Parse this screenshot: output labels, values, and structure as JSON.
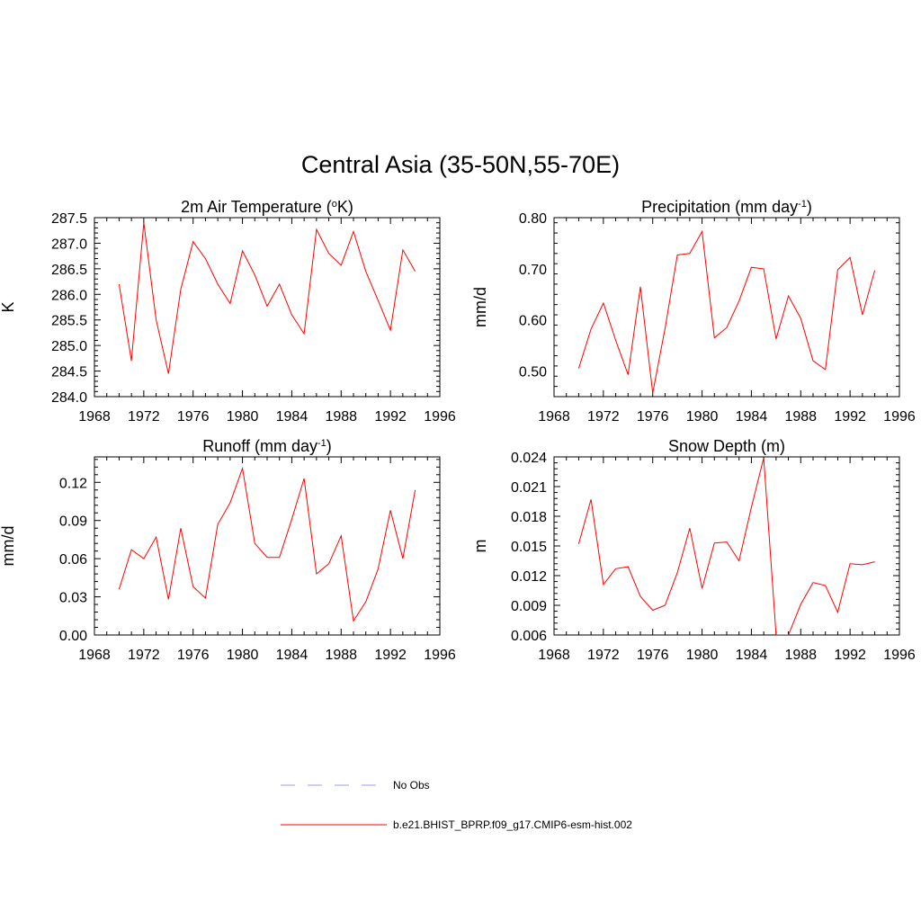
{
  "figure": {
    "title": "Central Asia (35-50N,55-70E)"
  },
  "legend": {
    "entries": [
      {
        "label": "No Obs",
        "color": "#9999ff",
        "style": "dashed"
      },
      {
        "label": "b.e21.BHIST_BPRP.f09_g17.CMIP6-esm-hist.002",
        "color": "#ff0000",
        "style": "solid"
      }
    ]
  },
  "chart_data": [
    {
      "type": "line",
      "title": "2m Air Temperature (°K)",
      "title_parts": [
        "2m Air Temperature (",
        "o",
        "K)"
      ],
      "ylabel": "K",
      "xlim": [
        1968,
        1996
      ],
      "ylim": [
        284.0,
        287.5
      ],
      "xticks": [
        1968,
        1972,
        1976,
        1980,
        1984,
        1988,
        1992,
        1996
      ],
      "yticks": [
        "284.0",
        "284.5",
        "285.0",
        "285.5",
        "286.0",
        "286.5",
        "287.0",
        "287.5"
      ],
      "series": [
        {
          "name": "b.e21.BHIST_BPRP.f09_g17.CMIP6-esm-hist.002",
          "color": "#ff0000",
          "x": [
            1970,
            1971,
            1972,
            1973,
            1974,
            1975,
            1976,
            1977,
            1978,
            1979,
            1980,
            1981,
            1982,
            1983,
            1984,
            1985,
            1986,
            1987,
            1988,
            1989,
            1990,
            1991,
            1992,
            1993,
            1994
          ],
          "y": [
            286.2,
            284.7,
            287.4,
            285.5,
            284.45,
            286.1,
            287.03,
            286.7,
            286.2,
            285.82,
            286.85,
            286.38,
            285.77,
            286.2,
            285.6,
            285.23,
            287.27,
            286.8,
            286.57,
            287.23,
            286.45,
            285.88,
            285.3,
            286.87,
            286.45
          ]
        }
      ]
    },
    {
      "type": "line",
      "title": "Precipitation (mm day-1)",
      "title_parts": [
        "Precipitation (mm day",
        "-1",
        ")"
      ],
      "ylabel": "mm/d",
      "xlim": [
        1968,
        1996
      ],
      "ylim": [
        0.45,
        0.8
      ],
      "xticks": [
        1968,
        1972,
        1976,
        1980,
        1984,
        1988,
        1992,
        1996
      ],
      "yticks": [
        "0.50",
        "0.60",
        "0.70",
        "0.80"
      ],
      "series": [
        {
          "name": "b.e21.BHIST_BPRP.f09_g17.CMIP6-esm-hist.002",
          "color": "#ff0000",
          "x": [
            1970,
            1971,
            1972,
            1973,
            1974,
            1975,
            1976,
            1977,
            1978,
            1979,
            1980,
            1981,
            1982,
            1983,
            1984,
            1985,
            1986,
            1987,
            1988,
            1989,
            1990,
            1991,
            1992,
            1993,
            1994
          ],
          "y": [
            0.505,
            0.582,
            0.633,
            0.56,
            0.493,
            0.665,
            0.457,
            0.583,
            0.727,
            0.73,
            0.773,
            0.565,
            0.585,
            0.637,
            0.703,
            0.7,
            0.563,
            0.647,
            0.603,
            0.52,
            0.503,
            0.698,
            0.722,
            0.61,
            0.697
          ]
        }
      ]
    },
    {
      "type": "line",
      "title": "Runoff (mm day-1)",
      "title_parts": [
        "Runoff (mm day",
        "-1",
        ")"
      ],
      "ylabel": "mm/d",
      "xlim": [
        1968,
        1996
      ],
      "ylim": [
        0.0,
        0.14
      ],
      "xticks": [
        1968,
        1972,
        1976,
        1980,
        1984,
        1988,
        1992,
        1996
      ],
      "yticks": [
        "0.00",
        "0.03",
        "0.06",
        "0.09",
        "0.12"
      ],
      "series": [
        {
          "name": "b.e21.BHIST_BPRP.f09_g17.CMIP6-esm-hist.002",
          "color": "#ff0000",
          "x": [
            1970,
            1971,
            1972,
            1973,
            1974,
            1975,
            1976,
            1977,
            1978,
            1979,
            1980,
            1981,
            1982,
            1983,
            1984,
            1985,
            1986,
            1987,
            1988,
            1989,
            1990,
            1991,
            1992,
            1993,
            1994
          ],
          "y": [
            0.036,
            0.067,
            0.06,
            0.077,
            0.028,
            0.084,
            0.038,
            0.029,
            0.087,
            0.104,
            0.131,
            0.072,
            0.061,
            0.061,
            0.091,
            0.123,
            0.048,
            0.056,
            0.078,
            0.011,
            0.026,
            0.052,
            0.098,
            0.06,
            0.114
          ]
        }
      ]
    },
    {
      "type": "line",
      "title": "Snow Depth (m)",
      "title_parts": [
        "Snow Depth (m)"
      ],
      "ylabel": "m",
      "xlim": [
        1968,
        1996
      ],
      "ylim": [
        0.006,
        0.024
      ],
      "xticks": [
        1968,
        1972,
        1976,
        1980,
        1984,
        1988,
        1992,
        1996
      ],
      "yticks": [
        "0.006",
        "0.009",
        "0.012",
        "0.015",
        "0.018",
        "0.021",
        "0.024"
      ],
      "series": [
        {
          "name": "b.e21.BHIST_BPRP.f09_g17.CMIP6-esm-hist.002",
          "color": "#ff0000",
          "x": [
            1970,
            1971,
            1972,
            1973,
            1974,
            1975,
            1976,
            1977,
            1978,
            1979,
            1980,
            1981,
            1982,
            1983,
            1984,
            1985,
            1986,
            1987,
            1988,
            1989,
            1990,
            1991,
            1992,
            1993,
            1994
          ],
          "y": [
            0.0152,
            0.0197,
            0.0111,
            0.0127,
            0.0129,
            0.0099,
            0.0085,
            0.009,
            0.0123,
            0.0168,
            0.0107,
            0.0153,
            0.0154,
            0.0135,
            0.0189,
            0.0239,
            0.006,
            0.006,
            0.0091,
            0.0113,
            0.011,
            0.0083,
            0.0132,
            0.0131,
            0.0134
          ]
        }
      ]
    }
  ]
}
